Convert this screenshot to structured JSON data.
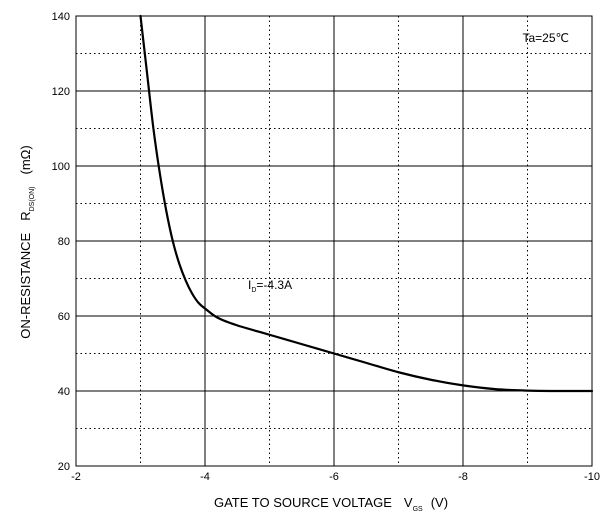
{
  "chart_data": {
    "type": "line",
    "title": "",
    "xlabel": "GATE TO SOURCE VOLTAGE",
    "xlabel_symbol": "V",
    "xlabel_symbol_sub": "GS",
    "xlabel_unit": "(V)",
    "ylabel": "ON-RESISTANCE",
    "ylabel_symbol": "R",
    "ylabel_symbol_sub": "DS(ON)",
    "ylabel_unit": "(mΩ)",
    "xlim": [
      -2,
      -10
    ],
    "ylim": [
      20,
      140
    ],
    "x_ticks": [
      -2,
      -4,
      -6,
      -8,
      -10
    ],
    "x_tick_labels": [
      "-2",
      "-4",
      "-6",
      "-8",
      "-10"
    ],
    "y_ticks": [
      20,
      40,
      60,
      80,
      100,
      120,
      140
    ],
    "y_tick_labels": [
      "20",
      "40",
      "60",
      "80",
      "100",
      "120",
      "140"
    ],
    "grid": true,
    "annotations": {
      "temperature": "Ta=25℃",
      "series_label_main": "I",
      "series_label_sub": "D",
      "series_label_rest": "=-4.3A"
    },
    "series": [
      {
        "x": [
          -3.0,
          -3.1,
          -3.2,
          -3.3,
          -3.4,
          -3.5,
          -3.6,
          -3.7,
          -3.8,
          -3.9,
          -4.0,
          -4.2,
          -4.5,
          -5.0,
          -5.5,
          -6.0,
          -6.5,
          -7.0,
          -7.5,
          -8.0,
          -8.5,
          -9.0,
          -9.5,
          -10.0
        ],
        "values": [
          140,
          125,
          110,
          98,
          88,
          80,
          74,
          69.5,
          66,
          63.5,
          62,
          59.5,
          57.5,
          55,
          52.5,
          50,
          47.5,
          45,
          43,
          41.5,
          40.5,
          40.1,
          40,
          40
        ]
      }
    ]
  }
}
